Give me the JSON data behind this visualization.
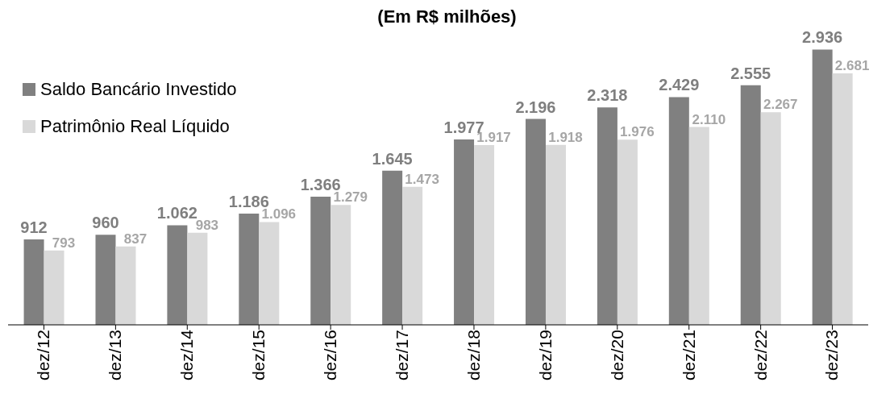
{
  "chart_data": {
    "type": "bar",
    "title": "(Em R$ milhões)",
    "categories": [
      "dez/12",
      "dez/13",
      "dez/14",
      "dez/15",
      "dez/16",
      "dez/17",
      "dez/18",
      "dez/19",
      "dez/20",
      "dez/21",
      "dez/22",
      "dez/23"
    ],
    "series": [
      {
        "name": "Saldo Bancário Investido",
        "color": "#808080",
        "values": [
          912,
          960,
          1062,
          1186,
          1366,
          1645,
          1977,
          2196,
          2318,
          2429,
          2555,
          2936
        ],
        "value_labels": [
          "912",
          "960",
          "1.062",
          "1.186",
          "1.366",
          "1.645",
          "1.977",
          "2.196",
          "2.318",
          "2.429",
          "2.555",
          "2.936"
        ]
      },
      {
        "name": "Patrimônio Real Líquido",
        "color": "#d9d9d9",
        "values": [
          793,
          837,
          983,
          1096,
          1279,
          1473,
          1917,
          1918,
          1976,
          2110,
          2267,
          2681
        ],
        "value_labels": [
          "793",
          "837",
          "983",
          "1.096",
          "1.279",
          "1.473",
          "1.917",
          "1.918",
          "1.976",
          "2.110",
          "2.267",
          "2.681"
        ]
      }
    ],
    "legend": "top left",
    "grid": false
  }
}
